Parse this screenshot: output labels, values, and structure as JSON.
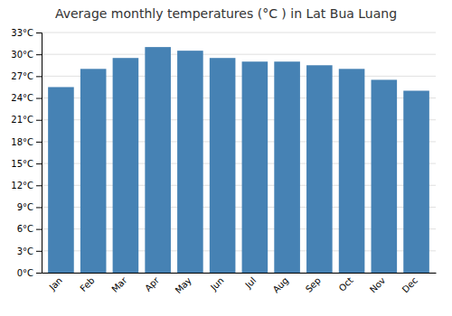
{
  "chart_data": {
    "type": "bar",
    "title": "Average monthly temperatures (°C ) in Lat Bua Luang",
    "categories": [
      "Jan",
      "Feb",
      "Mar",
      "Apr",
      "May",
      "Jun",
      "Jul",
      "Aug",
      "Sep",
      "Oct",
      "Nov",
      "Dec"
    ],
    "values": [
      25.5,
      28.0,
      29.5,
      31.0,
      30.5,
      29.5,
      29.0,
      29.0,
      28.5,
      28.0,
      26.5,
      25.0
    ],
    "ylim": [
      0,
      33
    ],
    "yticks": [
      {
        "value": 0,
        "label": "0°C"
      },
      {
        "value": 3,
        "label": "3°C"
      },
      {
        "value": 6,
        "label": "6°C"
      },
      {
        "value": 9,
        "label": "9°C"
      },
      {
        "value": 12,
        "label": "12°C"
      },
      {
        "value": 15,
        "label": "15°C"
      },
      {
        "value": 18,
        "label": "18°C"
      },
      {
        "value": 21,
        "label": "21°C"
      },
      {
        "value": 24,
        "label": "24°C"
      },
      {
        "value": 27,
        "label": "27°C"
      },
      {
        "value": 30,
        "label": "30°C"
      },
      {
        "value": 33,
        "label": "33°C"
      }
    ],
    "grid": true
  }
}
